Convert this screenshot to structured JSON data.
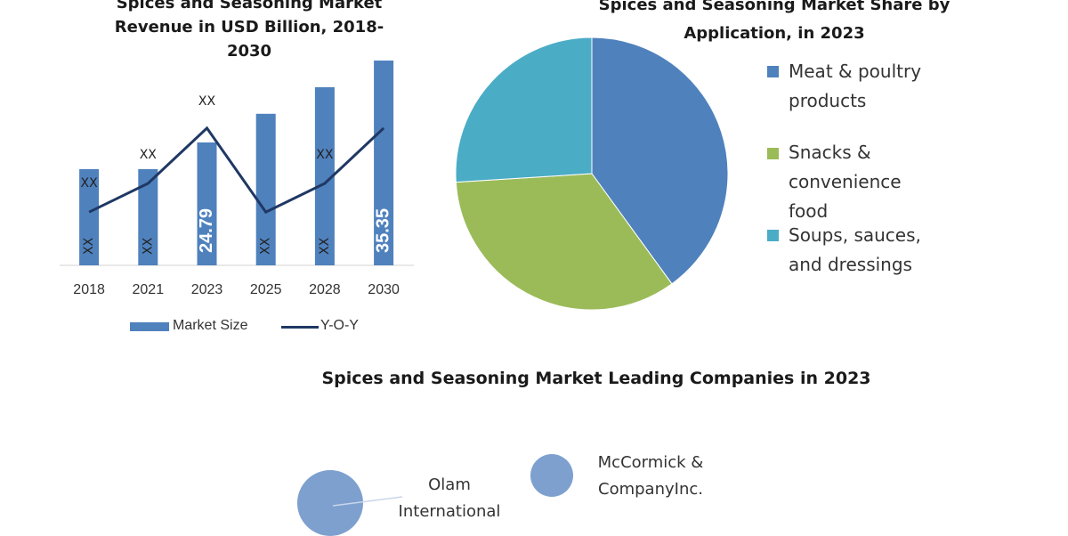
{
  "bar_chart": {
    "title_lines": [
      "Spices and Seasoning Market",
      "Revenue in USD Billion, 2018-",
      "2030"
    ],
    "legend": {
      "bar_label": "Market Size",
      "line_label": "Y-O-Y"
    },
    "colors": {
      "bar": "#4f81bd",
      "line": "#1f3864"
    }
  },
  "pie_chart": {
    "title_lines": [
      "Spices and Seasoning Market Share by",
      "Application, in 2023"
    ],
    "colors": {
      "meat": "#4f81bd",
      "snacks": "#9bbb59",
      "soups": "#4bacc6"
    },
    "legend_lines": {
      "meat": [
        "Meat & poultry",
        "products"
      ],
      "snacks": [
        "Snacks &",
        "convenience",
        "food"
      ],
      "soups": [
        "Soups, sauces,",
        "and dressings"
      ]
    }
  },
  "companies": {
    "title": "Spices and Seasoning Market Leading Companies in 2023",
    "bubble_color": "#7da0cf",
    "items": [
      {
        "name_lines": [
          "Olam",
          "International"
        ]
      },
      {
        "name_lines": [
          "McCormick &",
          "CompanyInc."
        ]
      }
    ]
  },
  "chart_data": [
    {
      "type": "bar",
      "categories": [
        "2018",
        "2021",
        "2023",
        "2025",
        "2028",
        "2030"
      ],
      "series": [
        {
          "name": "Market Size",
          "values": [
            null,
            null,
            24.79,
            null,
            null,
            35.35
          ],
          "value_labels": [
            "XX",
            "XX",
            "24.79",
            "XX",
            "XX",
            "35.35"
          ]
        },
        {
          "name": "Y-O-Y",
          "type": "line",
          "values": [
            null,
            null,
            null,
            null,
            null,
            null
          ],
          "value_labels": [
            "XX",
            "XX",
            "XX",
            "",
            "XX",
            ""
          ]
        }
      ],
      "bar_relative_heights": [
        0.47,
        0.47,
        0.6,
        0.74,
        0.87,
        1.0
      ],
      "line_relative_levels": [
        0.26,
        0.4,
        0.67,
        0.26,
        0.4,
        0.67
      ],
      "xlabel": "",
      "ylabel": "",
      "grid": false,
      "legend_position": "bottom"
    },
    {
      "type": "pie",
      "categories": [
        "Meat & poultry products",
        "Snacks & convenience food",
        "Soups, sauces, and dressings"
      ],
      "values": [
        40,
        34,
        26
      ],
      "legend_position": "right"
    },
    {
      "type": "scatter",
      "categories": [
        "Olam International",
        "McCormick & CompanyInc."
      ],
      "relative_sizes": [
        1.0,
        0.65
      ]
    }
  ]
}
